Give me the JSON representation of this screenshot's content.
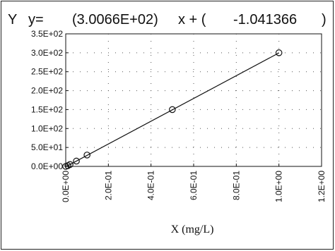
{
  "equation": {
    "y_label": "Y",
    "y_eq": "y=",
    "slope": "(3.0066E+02)",
    "x_plus": "x + (",
    "intercept": "-1.041366",
    "close": ")"
  },
  "chart_data": {
    "type": "scatter",
    "title": "",
    "xlabel": "X (mg/L)",
    "ylabel": "",
    "xlim": [
      0,
      1.2
    ],
    "ylim": [
      0,
      350
    ],
    "x_ticks": [
      0,
      0.2,
      0.4,
      0.6,
      0.8,
      1.0,
      1.2
    ],
    "x_tick_labels": [
      "0.0E+00",
      "2.0E-01",
      "4.0E-01",
      "6.0E-01",
      "8.0E-01",
      "1.0E+00",
      "1.2E+00"
    ],
    "y_ticks": [
      0,
      50,
      100,
      150,
      200,
      250,
      300,
      350
    ],
    "y_tick_labels": [
      "0.0E+00",
      "5.0E+01",
      "1.0E+02",
      "1.5E+02",
      "2.0E+02",
      "2.5E+02",
      "3.0E+02",
      "3.5E+02"
    ],
    "grid": true,
    "series": [
      {
        "x": [
          0,
          0.01,
          0.02,
          0.05,
          0.1,
          0.5,
          1.0
        ],
        "y": [
          0,
          2,
          5,
          14,
          30,
          150,
          300
        ]
      }
    ],
    "fit_line": {
      "slope": 300.66,
      "intercept": -1.041366,
      "x_range": [
        0,
        1.0
      ]
    }
  }
}
